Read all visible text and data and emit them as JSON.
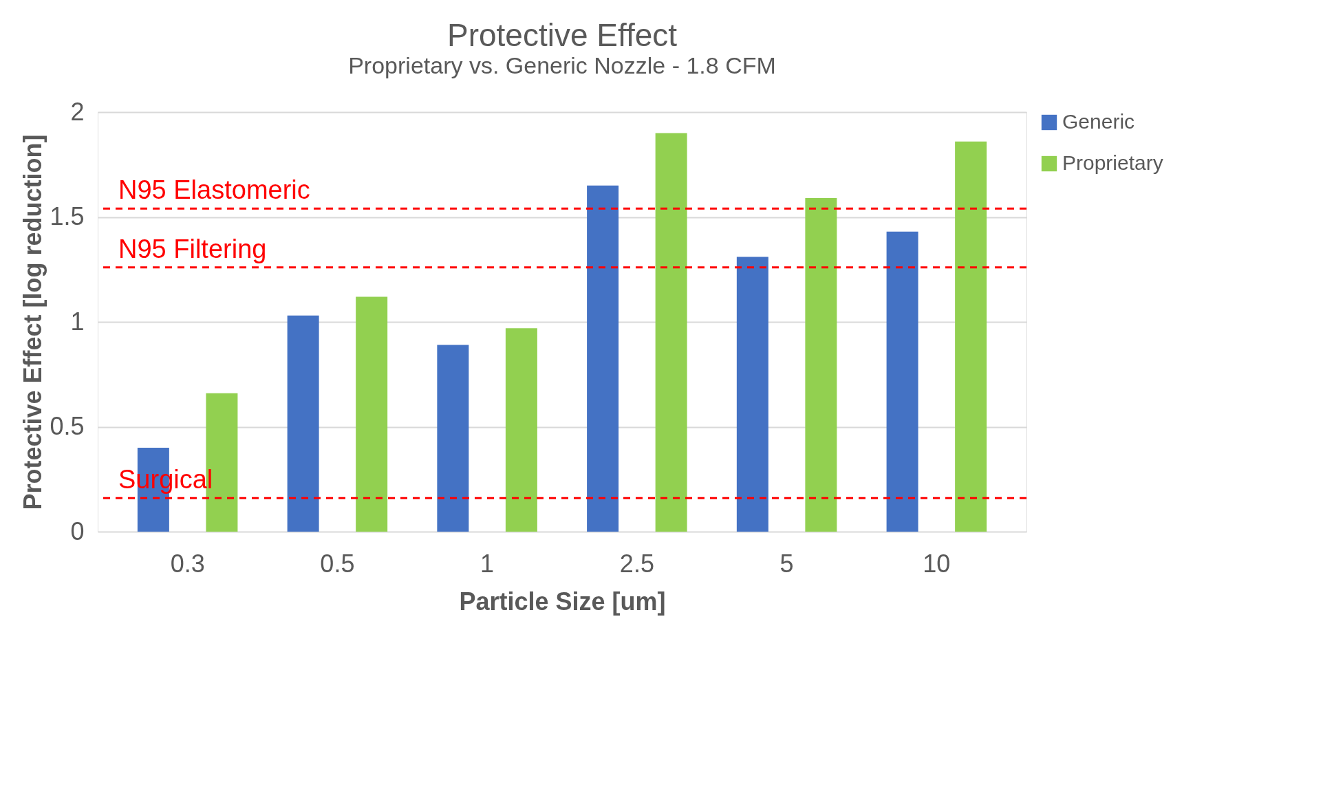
{
  "chart_data": {
    "type": "bar",
    "title": "Protective Effect",
    "subtitle": "Proprietary vs. Generic Nozzle - 1.8 CFM",
    "xlabel": "Particle Size [um]",
    "ylabel": "Protective Effect [log reduction]",
    "categories": [
      "0.3",
      "0.5",
      "1",
      "2.5",
      "5",
      "10"
    ],
    "series": [
      {
        "name": "Generic",
        "color": "#4472c4",
        "values": [
          0.4,
          1.03,
          0.89,
          1.65,
          1.31,
          1.43
        ]
      },
      {
        "name": "Proprietary",
        "color": "#92d050",
        "values": [
          0.66,
          1.12,
          0.97,
          1.9,
          1.59,
          1.86
        ]
      }
    ],
    "ylim": [
      0,
      2
    ],
    "yticks": [
      0,
      0.5,
      1,
      1.5,
      2
    ],
    "grid": "y",
    "legend": "right",
    "ref_lines": [
      {
        "axis": "y",
        "value": 1.54,
        "label": "N95 Elastomeric",
        "color": "#ff0000",
        "line_style": "dashed"
      },
      {
        "axis": "y",
        "value": 1.26,
        "label": "N95 Filtering",
        "color": "#ff0000",
        "line_style": "dashed"
      },
      {
        "axis": "y",
        "value": 0.16,
        "label": "Surgical",
        "color": "#ff0000",
        "line_style": "dashed"
      }
    ]
  }
}
